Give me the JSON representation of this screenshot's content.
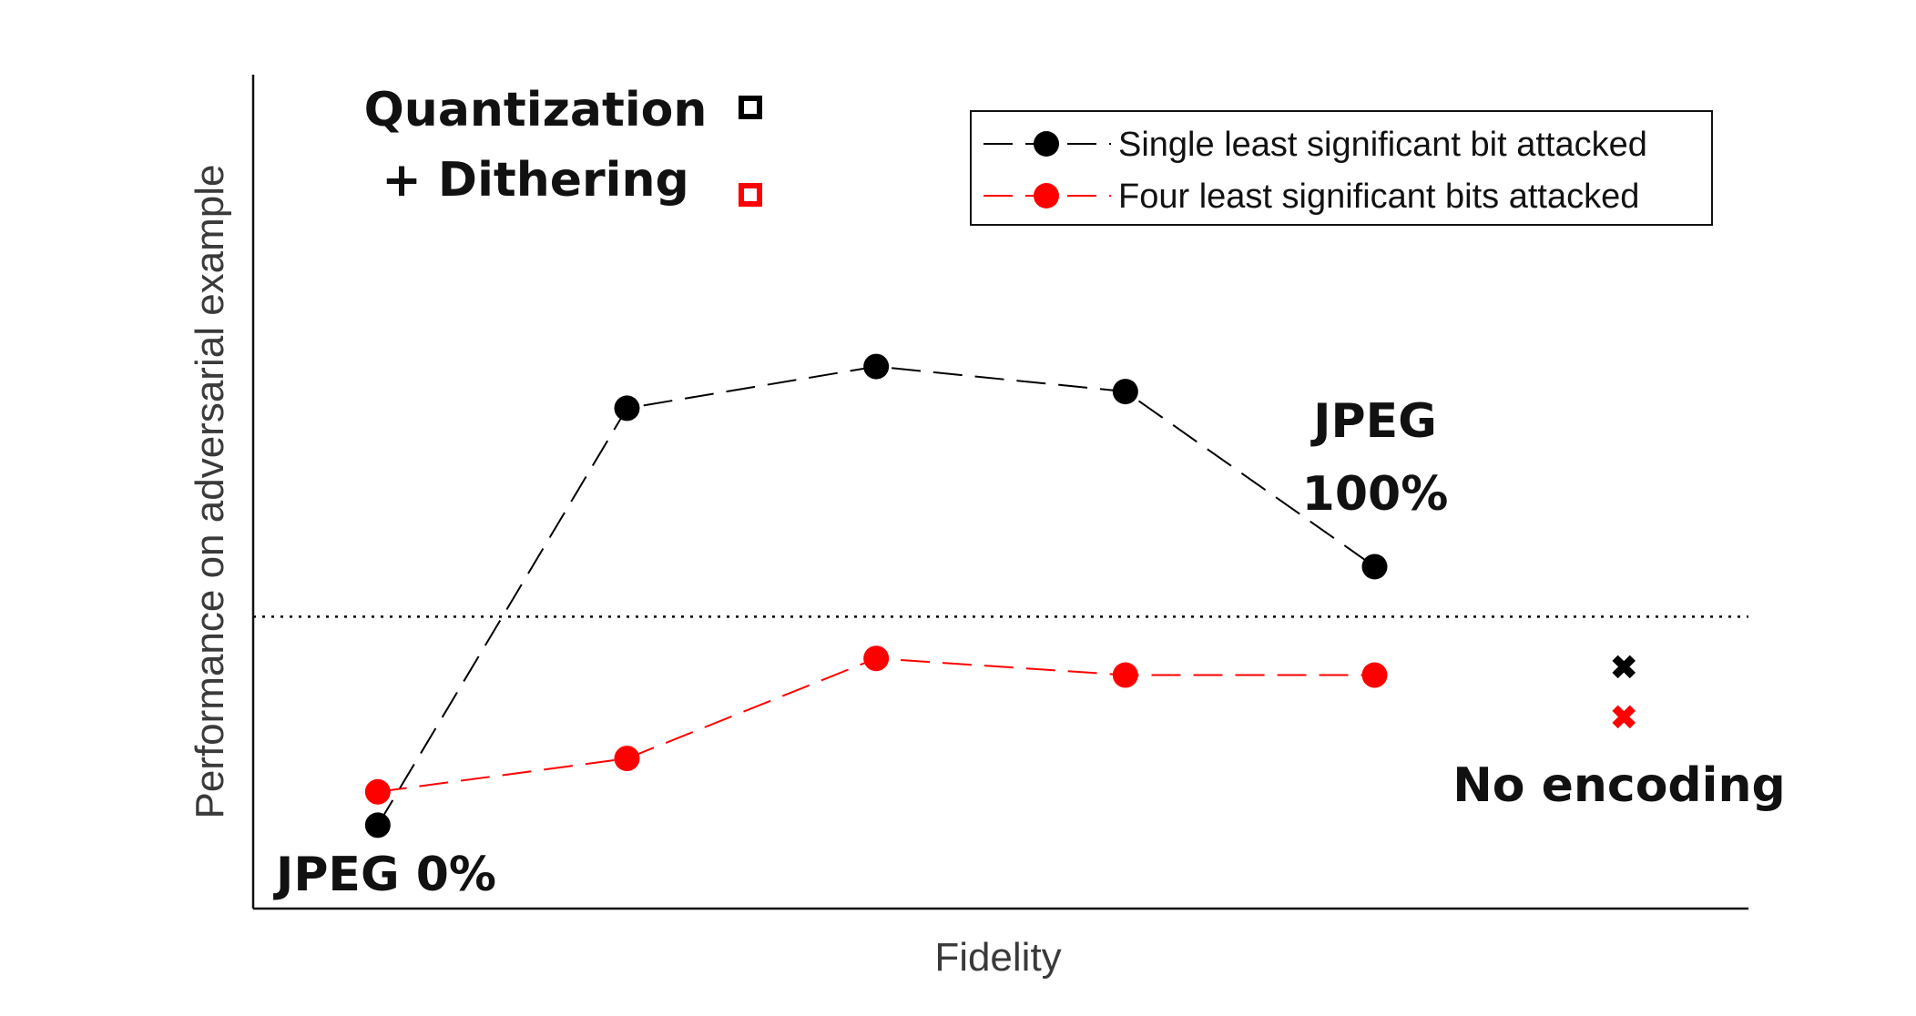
{
  "chart_data": {
    "type": "line",
    "xlabel": "Fidelity",
    "ylabel": "Performance on adversarial example",
    "x": [
      1,
      2,
      3,
      4,
      5
    ],
    "xlim": [
      0.5,
      6.5
    ],
    "ylim": [
      0,
      1
    ],
    "reference_line": {
      "style": "dotted",
      "y": 0.35,
      "color": "#000000"
    },
    "series": [
      {
        "name": "Single least significant bit attacked",
        "color": "#000000",
        "line_style": "dashed",
        "marker": "circle",
        "values": [
          0.1,
          0.6,
          0.65,
          0.62,
          0.41
        ]
      },
      {
        "name": "Four least significant bits attacked",
        "color": "#ff0000",
        "line_style": "dashed",
        "marker": "circle",
        "values": [
          0.14,
          0.18,
          0.3,
          0.28,
          0.28
        ]
      }
    ],
    "no_encoding": {
      "label": "No encoding",
      "x": 6,
      "markers": [
        {
          "color": "#000000",
          "marker": "x",
          "value": 0.29
        },
        {
          "color": "#ff0000",
          "marker": "x",
          "value": 0.23
        }
      ]
    },
    "annotations": {
      "jpeg_low": "JPEG 0%",
      "jpeg_high_line1": "JPEG",
      "jpeg_high_line2": "100%",
      "quantization": "Quantization",
      "dithering": "+ Dithering"
    },
    "qd_markers": {
      "quantization": {
        "color": "#000000",
        "marker": "hollow-square"
      },
      "dithering": {
        "color": "#ff0000",
        "marker": "hollow-square"
      }
    },
    "legend": {
      "position": "top-right"
    },
    "grid": false
  }
}
